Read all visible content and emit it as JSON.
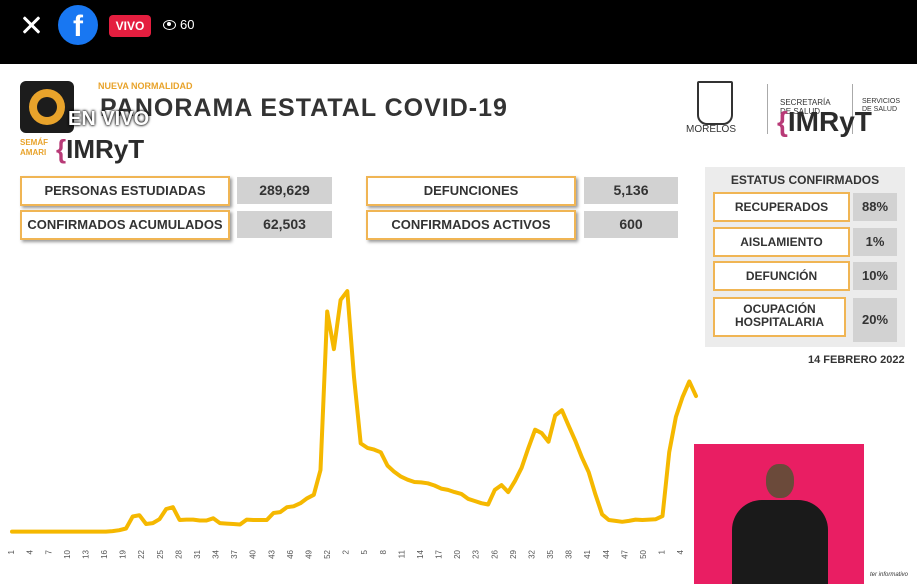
{
  "top_bar": {
    "live_badge": "VIVO",
    "viewer_count": "60",
    "icons": [
      "close-icon",
      "facebook-icon",
      "eye-icon"
    ],
    "live_color": "#e41e3f"
  },
  "slide": {
    "overlay_text": "EN VIVO",
    "header_small": "NUEVA NORMALIDAD",
    "title": "PANORAMA ESTATAL COVID-19",
    "semaforo_text": "SEMÁF\nAMARI",
    "imryt_logo": "IMRyT",
    "morelos_label": "MORELOS",
    "secretaria_label": "SECRETARÍA\nDE SALUD",
    "servicios_label": "SERVICIOS\nDE SALUD",
    "stats": [
      {
        "label": "PERSONAS ESTUDIADAS",
        "value": "289,629"
      },
      {
        "label": "CONFIRMADOS ACUMULADOS",
        "value": "62,503"
      },
      {
        "label": "DEFUNCIONES",
        "value": "5,136"
      },
      {
        "label": "CONFIRMADOS ACTIVOS",
        "value": "600"
      }
    ],
    "status_panel": {
      "title": "ESTATUS CONFIRMADOS",
      "items": [
        {
          "label": "RECUPERADOS",
          "value": "88%"
        },
        {
          "label": "AISLAMIENTO",
          "value": "1%"
        },
        {
          "label": "DEFUNCIÓN",
          "value": "10%"
        },
        {
          "label": "OCUPACIÓN\nHOSPITALARIA",
          "value": "20%"
        }
      ]
    },
    "date": "14 FEBRERO 2022",
    "credit": "ter informativo",
    "accent_color": "#f5b800"
  },
  "chart_data": {
    "type": "line",
    "x_ticks": [
      "1",
      "4",
      "7",
      "10",
      "13",
      "16",
      "19",
      "22",
      "25",
      "28",
      "31",
      "34",
      "37",
      "40",
      "43",
      "46",
      "49",
      "52",
      "2",
      "5",
      "8",
      "11",
      "14",
      "17",
      "20",
      "23",
      "26",
      "29",
      "32",
      "35",
      "38",
      "41",
      "44",
      "47",
      "50",
      "1",
      "4"
    ],
    "values": [
      1,
      1,
      1,
      1,
      1,
      1,
      1,
      1,
      1,
      1,
      1,
      1,
      1,
      1,
      1,
      2,
      4,
      8,
      35,
      38,
      18,
      20,
      29,
      52,
      56,
      27,
      28,
      28,
      26,
      26,
      31,
      20,
      19,
      18,
      17,
      28,
      27,
      27,
      27,
      43,
      45,
      56,
      58,
      65,
      76,
      84,
      140,
      498,
      413,
      524,
      544,
      350,
      200,
      190,
      186,
      180,
      150,
      136,
      125,
      118,
      113,
      112,
      110,
      105,
      98,
      95,
      90,
      86,
      75,
      70,
      65,
      62,
      95,
      106,
      90,
      115,
      145,
      190,
      231,
      223,
      204,
      263,
      275,
      240,
      206,
      168,
      135,
      85,
      40,
      27,
      25,
      23,
      25,
      28,
      27,
      28,
      29,
      36,
      180,
      260,
      305,
      340,
      307
    ],
    "ylim": [
      0,
      560
    ],
    "line_color": "#f5b800"
  }
}
